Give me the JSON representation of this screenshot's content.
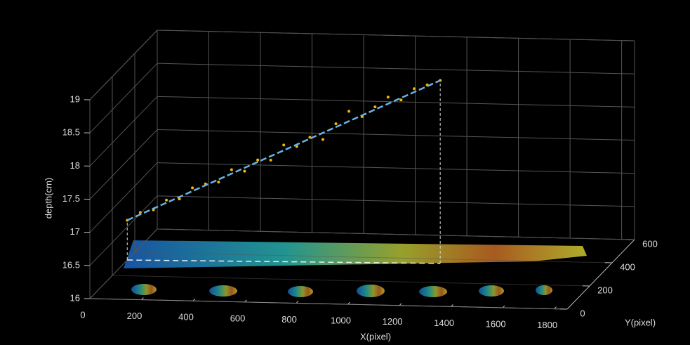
{
  "chart_data": {
    "type": "scatter3d",
    "x": [
      0,
      50,
      100,
      150,
      200,
      250,
      300,
      350,
      400,
      450,
      500,
      550,
      600,
      650,
      700,
      750,
      800,
      850,
      900,
      950,
      1000,
      1050,
      1100,
      1150,
      1200
    ],
    "y": [
      333,
      334,
      336,
      337,
      338,
      339,
      341,
      342,
      343,
      344,
      346,
      347,
      348,
      349,
      351,
      352,
      353,
      354,
      356,
      357,
      358,
      359,
      361,
      362,
      363
    ],
    "z": [
      16.6,
      16.72,
      16.76,
      16.91,
      16.93,
      17.1,
      17.16,
      17.19,
      17.38,
      17.36,
      17.53,
      17.53,
      17.76,
      17.74,
      17.88,
      17.85,
      18.09,
      18.28,
      18.2,
      18.35,
      18.5,
      18.46,
      18.63,
      18.69,
      18.76
    ],
    "color": "#f2b705",
    "fit": {
      "x": [
        0,
        1200
      ],
      "y": [
        333,
        363
      ],
      "z": [
        16.6,
        18.76
      ],
      "color": "#6ab4e0"
    },
    "xlabel": "X(pixel)",
    "ylabel": "Y(pixel)",
    "zlabel": "depth(cm)",
    "xlim": [
      0,
      1850
    ],
    "ylim": [
      0,
      600
    ],
    "zlim": [
      16,
      19
    ],
    "xticks": [
      0,
      200,
      400,
      600,
      800,
      1000,
      1200,
      1400,
      1600,
      1800
    ],
    "yticks": [
      0,
      200,
      400,
      600
    ],
    "zticks": [
      16,
      16.5,
      17,
      17.5,
      18,
      18.5,
      19
    ],
    "grid": true
  }
}
